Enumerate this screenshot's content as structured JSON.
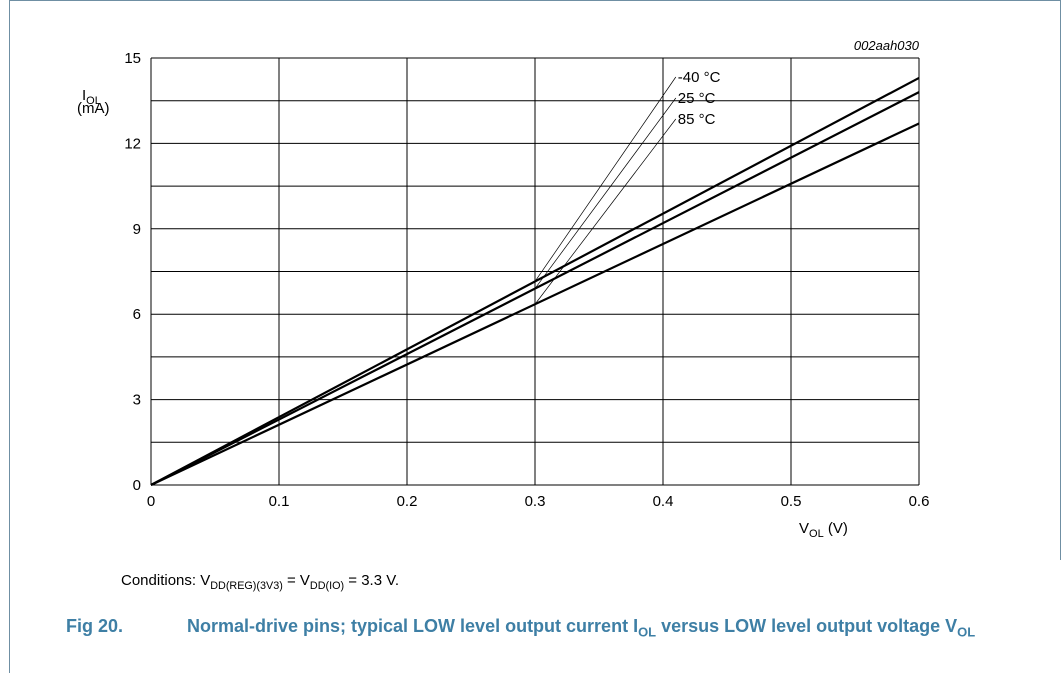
{
  "chart_data": {
    "type": "line",
    "figure_code": "002aah030",
    "y_label_main": "I",
    "y_label_sub": "OL",
    "y_unit": "(mA)",
    "x_label_main": "V",
    "x_label_sub": "OL",
    "x_unit": "(V)",
    "xlim": [
      0,
      0.6
    ],
    "ylim": [
      0,
      15
    ],
    "x_ticks": [
      "0",
      "0.1",
      "0.2",
      "0.3",
      "0.4",
      "0.5",
      "0.6"
    ],
    "y_ticks": [
      "0",
      "3",
      "6",
      "9",
      "12",
      "15"
    ],
    "grid": true,
    "series": [
      {
        "name": "-40 °C",
        "x": [
          0,
          0.6
        ],
        "y": [
          0,
          14.3
        ]
      },
      {
        "name": "25 °C",
        "x": [
          0,
          0.6
        ],
        "y": [
          0,
          13.8
        ]
      },
      {
        "name": "85 °C",
        "x": [
          0,
          0.6
        ],
        "y": [
          0,
          12.7
        ]
      }
    ]
  },
  "conditions": {
    "prefix": "Conditions: V",
    "sub1": "DD(REG)(3V3)",
    "mid": " = V",
    "sub2": "DD(IO)",
    "suffix": " = 3.3 V."
  },
  "caption": {
    "number": "Fig 20.",
    "text_1": "Normal-drive pins; typical LOW level output current I",
    "sub_1": "OL",
    "text_2": " versus LOW level output voltage V",
    "sub_2": "OL"
  },
  "colors": {
    "caption": "#3e7fa5",
    "frame": "#6f8fa3"
  }
}
